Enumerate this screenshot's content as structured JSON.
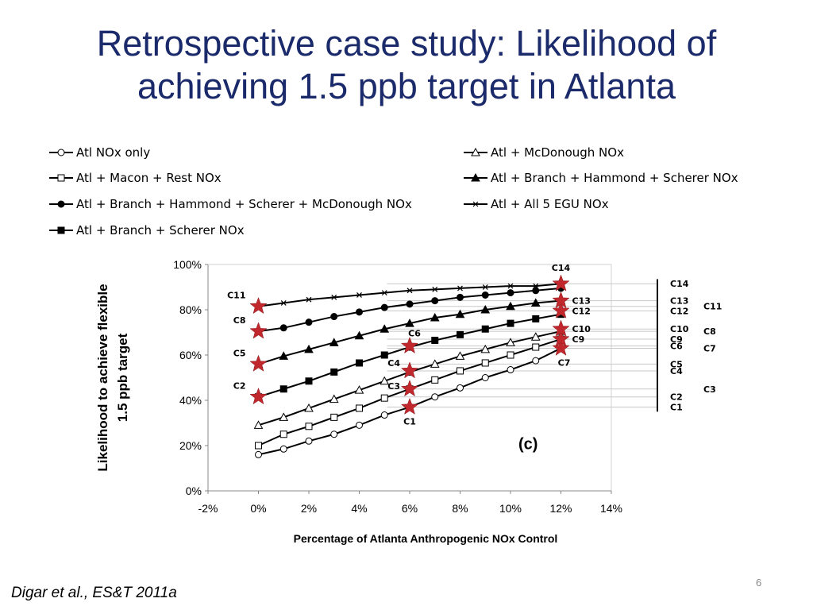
{
  "slide": {
    "title_line1": "Retrospective case study: Likelihood of",
    "title_line2": "achieving 1.5 ppb target in Atlanta",
    "citation": "Digar et al., ES&T 2011a",
    "page_number": "6",
    "title_color": "#1b2a6b"
  },
  "chart_data": {
    "type": "line",
    "panel_label": "(c)",
    "xlabel": "Percentage of Atlanta Anthropogenic NOx Control",
    "ylabel_line1": "Likelihood to achieve flexible",
    "ylabel_line2": "1.5 ppb target",
    "xlim": [
      -2,
      14
    ],
    "ylim": [
      0,
      100
    ],
    "x_ticks": [
      "-2%",
      "0%",
      "2%",
      "4%",
      "6%",
      "8%",
      "10%",
      "12%",
      "14%"
    ],
    "y_ticks": [
      "0%",
      "20%",
      "40%",
      "60%",
      "80%",
      "100%"
    ],
    "x_tick_values": [
      -2,
      0,
      2,
      4,
      6,
      8,
      10,
      12,
      14
    ],
    "y_tick_values": [
      0,
      20,
      40,
      60,
      80,
      100
    ],
    "x": [
      0,
      1,
      2,
      3,
      4,
      5,
      6,
      7,
      8,
      9,
      10,
      11,
      12
    ],
    "series": [
      {
        "name": "Atl NOx only",
        "marker": "circle-open",
        "values": [
          16,
          18.5,
          22,
          25,
          29,
          33.5,
          37,
          41.5,
          45.5,
          50,
          53.5,
          57.5,
          63
        ]
      },
      {
        "name": "Atl + McDonough NOx",
        "marker": "triangle-open",
        "values": [
          29,
          32.5,
          36.5,
          40.5,
          44.5,
          48.5,
          52.5,
          56,
          59.5,
          62.5,
          65.5,
          68,
          70.5
        ]
      },
      {
        "name": "Atl + Macon + Rest NOx",
        "marker": "square-open",
        "values": [
          20,
          25,
          28.5,
          32.5,
          36.5,
          41,
          45,
          49,
          53,
          56.5,
          60,
          63.5,
          67
        ]
      },
      {
        "name": "Atl + Branch + Hammond + Scherer NOx",
        "marker": "triangle-filled",
        "values": [
          56,
          59.5,
          62.5,
          65.5,
          68.5,
          71.5,
          74,
          76.5,
          78,
          80,
          81.5,
          83,
          84
        ]
      },
      {
        "name": "Atl + Branch + Hammond + Scherer + McDonough NOx",
        "marker": "circle-filled",
        "values": [
          70.5,
          72,
          74.5,
          77,
          79,
          81,
          82.5,
          84,
          85.5,
          86.5,
          87.5,
          88.5,
          89.5
        ]
      },
      {
        "name": "Atl + All 5 EGU NOx",
        "marker": "asterisk",
        "values": [
          81.5,
          83,
          84.5,
          85.5,
          86.5,
          87.5,
          88.5,
          89,
          89.5,
          90,
          90.5,
          90.5,
          91.5
        ]
      },
      {
        "name": "Atl + Branch + Scherer NOx",
        "marker": "square-filled",
        "values": [
          41.5,
          45,
          48.5,
          52.5,
          56.5,
          60,
          63.5,
          66.5,
          69,
          71.5,
          74,
          76,
          78
        ]
      }
    ],
    "legend_order": [
      0,
      1,
      2,
      3,
      4,
      5,
      6
    ],
    "cases": [
      {
        "label": "C1",
        "x": 6,
        "y": 37
      },
      {
        "label": "C2",
        "x": 0,
        "y": 41.5
      },
      {
        "label": "C3",
        "x": 6,
        "y": 45
      },
      {
        "label": "C4",
        "x": 6,
        "y": 53
      },
      {
        "label": "C5",
        "x": 0,
        "y": 56
      },
      {
        "label": "C6",
        "x": 6,
        "y": 64
      },
      {
        "label": "C7",
        "x": 12,
        "y": 63
      },
      {
        "label": "C8",
        "x": 0,
        "y": 70.5
      },
      {
        "label": "C9",
        "x": 12,
        "y": 67
      },
      {
        "label": "C10",
        "x": 12,
        "y": 71.5
      },
      {
        "label": "C11",
        "x": 0,
        "y": 81.5
      },
      {
        "label": "C12",
        "x": 12,
        "y": 79.5
      },
      {
        "label": "C13",
        "x": 12,
        "y": 84
      },
      {
        "label": "C14",
        "x": 12,
        "y": 91.5
      }
    ],
    "right_labels": [
      {
        "label": "C14",
        "y": 91.5,
        "col": 1
      },
      {
        "label": "C13",
        "y": 84,
        "col": 1
      },
      {
        "label": "C11",
        "y": 81.5,
        "col": 2
      },
      {
        "label": "C12",
        "y": 79.5,
        "col": 1
      },
      {
        "label": "C10",
        "y": 71.5,
        "col": 1
      },
      {
        "label": "C8",
        "y": 70.5,
        "col": 2
      },
      {
        "label": "C9",
        "y": 67,
        "col": 1
      },
      {
        "label": "C6",
        "y": 64,
        "col": 1
      },
      {
        "label": "C7",
        "y": 63,
        "col": 2
      },
      {
        "label": "C5",
        "y": 56,
        "col": 1
      },
      {
        "label": "C4",
        "y": 53,
        "col": 1
      },
      {
        "label": "C3",
        "y": 45,
        "col": 2
      },
      {
        "label": "C2",
        "y": 41.5,
        "col": 1
      },
      {
        "label": "C1",
        "y": 37,
        "col": 1
      }
    ],
    "star_color": "#c0282d",
    "grid": false
  }
}
